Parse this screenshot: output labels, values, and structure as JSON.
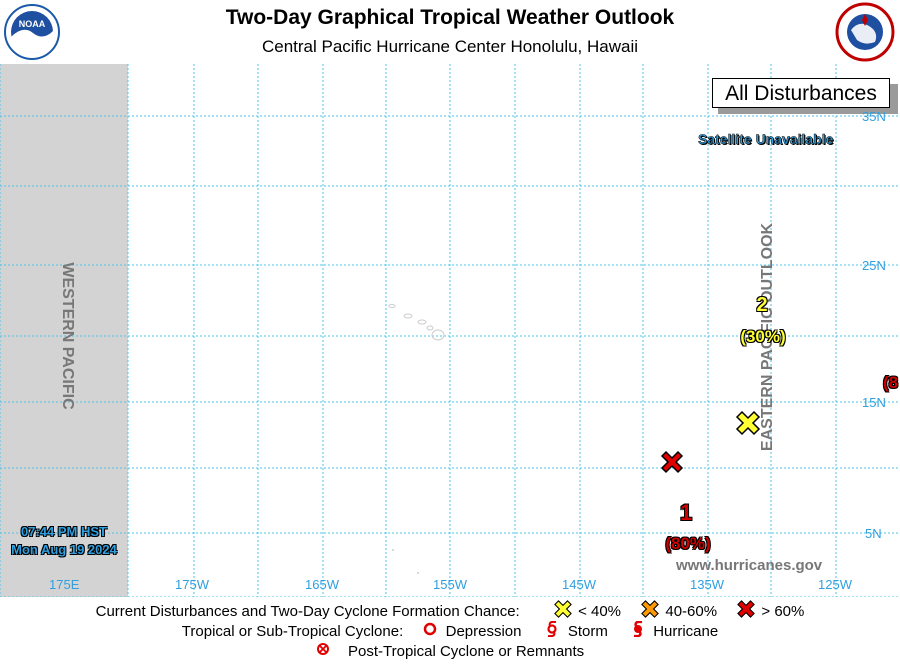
{
  "header": {
    "title": "Two-Day Graphical Tropical Weather Outlook",
    "subtitle": "Central Pacific Hurricane Center  Honolulu, Hawaii",
    "left_logo": "noaa-logo",
    "right_logo": "national-weather-service-logo"
  },
  "map": {
    "panel_label": "All Disturbances",
    "satellite_note": "Satellite Unavailable",
    "west_region_label": "WESTERN PACIFIC",
    "east_region_label": "EASTERN PACIFIC OUTLOOK",
    "timestamp_line1": "07:44 PM HST",
    "timestamp_line2": "Mon Aug 19 2024",
    "website": "www.hurricanes.gov",
    "lat_labels": [
      "35N",
      "25N",
      "15N",
      "5N"
    ],
    "lon_labels": [
      "175E",
      "175W",
      "165W",
      "155W",
      "145W",
      "135W",
      "125W"
    ],
    "disturbances": [
      {
        "id": "1",
        "chance": "(80%)",
        "category": "> 60%",
        "color": "#e00000"
      },
      {
        "id": "2",
        "chance": "(30%)",
        "category": "< 40%",
        "color": "#ffff00"
      },
      {
        "id": "",
        "chance": "(8",
        "category": "> 60%",
        "color": "#e00000"
      }
    ],
    "colors": {
      "grid": "#4fc3e8",
      "land": "#e6e6e6",
      "low": "#ffff00",
      "medium": "#ff9900",
      "high": "#e00000"
    }
  },
  "legend": {
    "row1_label": "Current Disturbances and Two-Day Cyclone Formation Chance:",
    "low_label": "< 40%",
    "medium_label": "40-60%",
    "high_label": "> 60%",
    "row2_label": "Tropical or Sub-Tropical Cyclone:",
    "depression_label": "Depression",
    "storm_label": "Storm",
    "hurricane_label": "Hurricane",
    "row3_label": "Post-Tropical Cyclone or Remnants"
  }
}
